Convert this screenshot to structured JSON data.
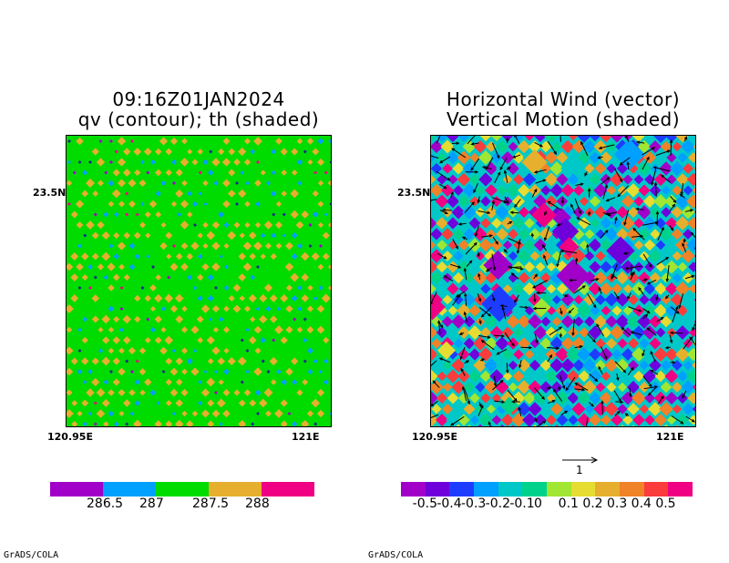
{
  "footer_left": "GrADS/COLA",
  "footer_right": "GrADS/COLA",
  "chart_data": [
    {
      "type": "heatmap",
      "title_line1": "09:16Z01JAN2024",
      "title_line2": "qv (contour); th (shaded)",
      "ytick_label": "23.5N",
      "xtick_left": "120.95E",
      "xtick_right": "121E",
      "colorbar": {
        "colors": [
          "#a000c8",
          "#00a0ff",
          "#00dc00",
          "#e6af2d",
          "#f00082"
        ],
        "labels": [
          "286.5",
          "287",
          "287.5",
          "288"
        ]
      }
    },
    {
      "type": "heatmap",
      "title_line1": "Horizontal Wind (vector)",
      "title_line2": "Vertical Motion (shaded)",
      "ytick_label": "23.5N",
      "xtick_left": "120.95E",
      "xtick_right": "121E",
      "ref_vector_label": "1",
      "colorbar": {
        "colors": [
          "#a000c8",
          "#6e00dc",
          "#1e3cff",
          "#00a0ff",
          "#00c8c8",
          "#00d28c",
          "#a0e632",
          "#e6dc32",
          "#e6af2d",
          "#f08228",
          "#fa3c3c",
          "#f00082"
        ],
        "labels": [
          "-0.5",
          "-0.4",
          "-0.3",
          "-0.2",
          "-0.1",
          "0",
          "0.1",
          "0.2",
          "0.3",
          "0.4",
          "0.5"
        ]
      }
    }
  ]
}
